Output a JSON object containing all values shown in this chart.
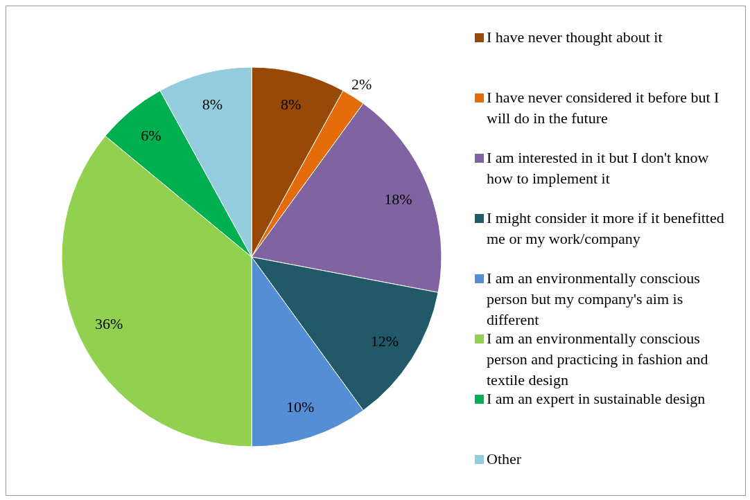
{
  "chart_data": {
    "type": "pie",
    "categories": [
      "I have never thought about it",
      "I have never considered it before but I will do in the future",
      "I am interested in it but I don't know how to implement it",
      "I might consider it more if it benefitted me or my work/company",
      "I am an environmentally conscious person but my company's aim is different",
      "I am an environmentally conscious person and practicing in fashion and textile design",
      "I am an expert in sustainable design",
      "Other"
    ],
    "values": [
      8,
      2,
      18,
      12,
      10,
      36,
      6,
      8
    ],
    "colors": [
      "#984807",
      "#e46c0a",
      "#8064a2",
      "#215968",
      "#558ed5",
      "#92d050",
      "#00b050",
      "#93cddd"
    ],
    "value_labels": [
      "8%",
      "2%",
      "18%",
      "12%",
      "10%",
      "36%",
      "6%",
      "8%"
    ],
    "legend": "right"
  }
}
